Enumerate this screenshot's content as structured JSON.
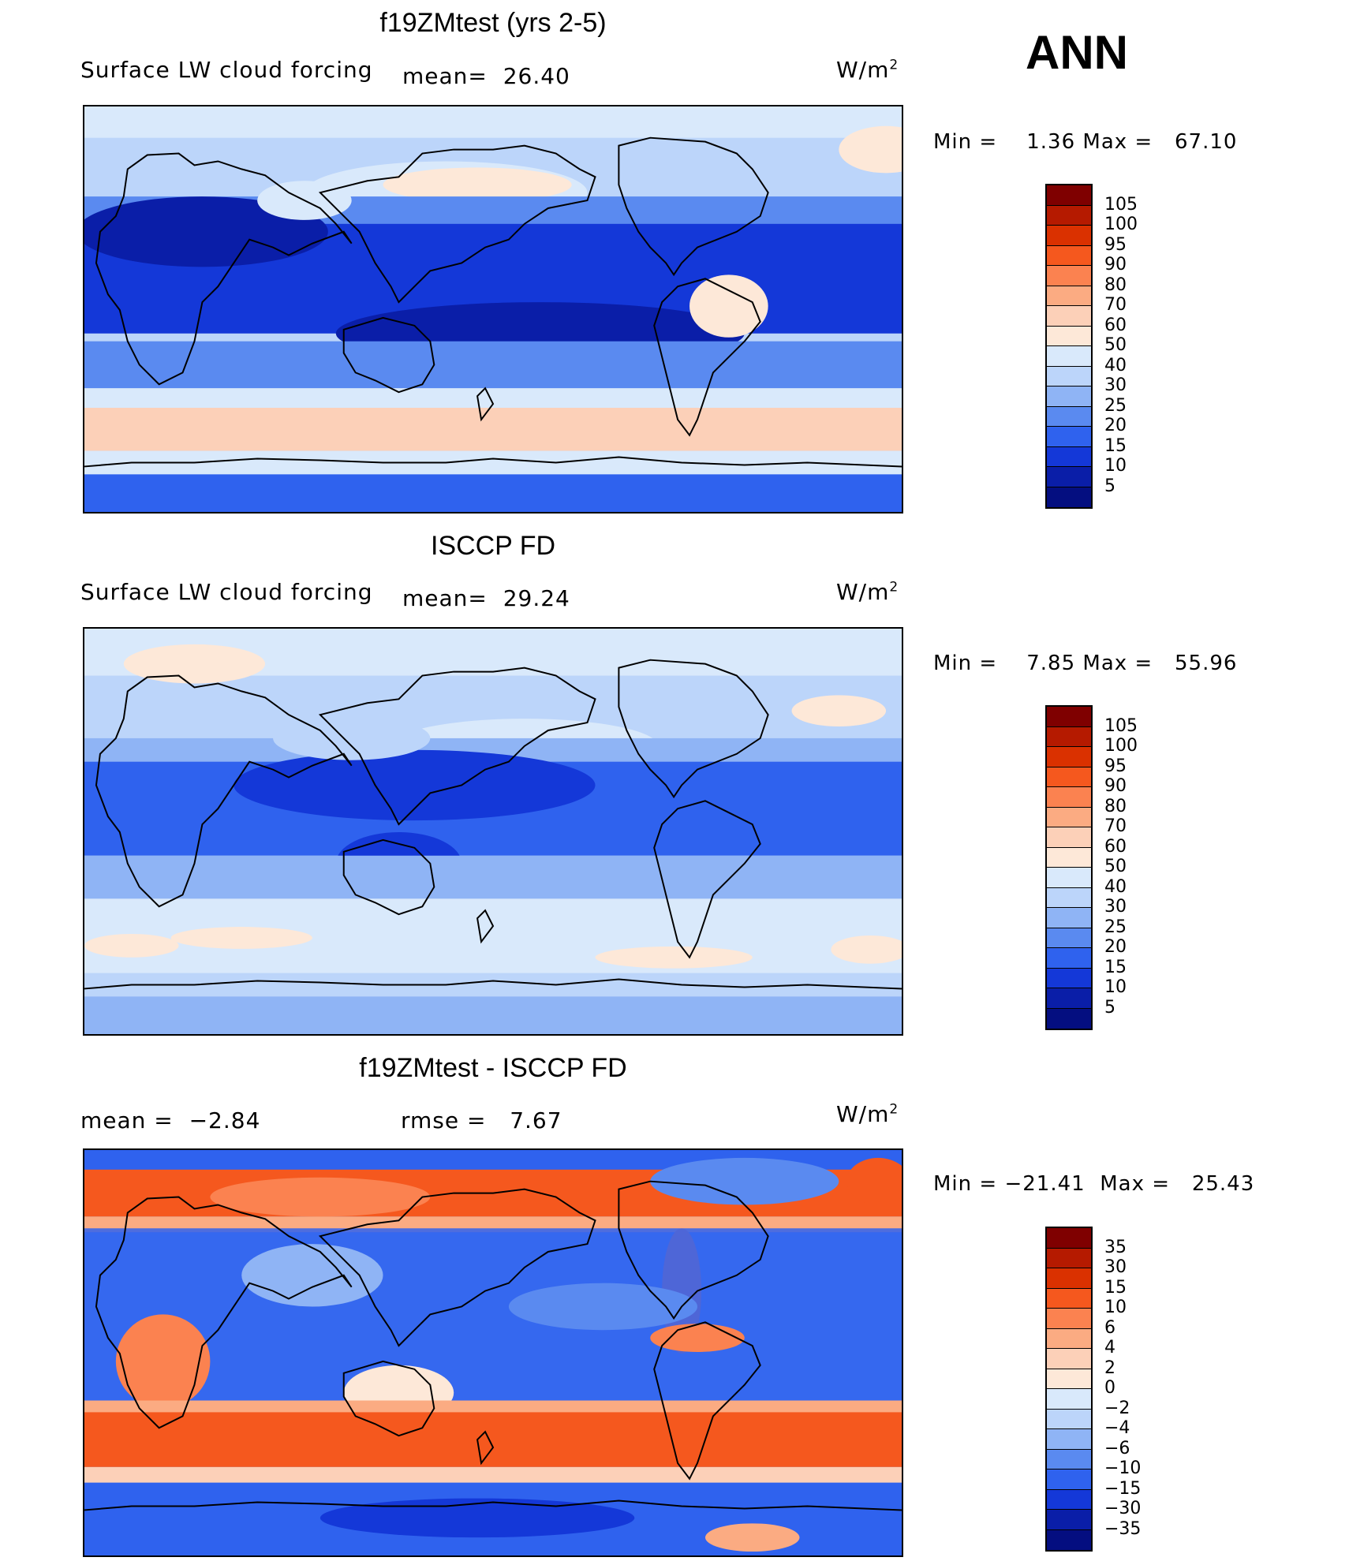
{
  "season": "ANN",
  "panels": [
    {
      "title": "f19ZMtest (yrs 2-5)",
      "variable": "Surface LW cloud forcing",
      "stat_label": "mean=",
      "stat_value": "26.40",
      "units": "W/m",
      "units_sup": "2",
      "min_label": "Min =",
      "min_value": "1.36",
      "max_label": "Max =",
      "max_value": "67.10",
      "levels": [
        "105",
        "100",
        "95",
        "90",
        "80",
        "70",
        "60",
        "50",
        "40",
        "30",
        "25",
        "20",
        "15",
        "10",
        "5"
      ]
    },
    {
      "title": "ISCCP FD",
      "variable": "Surface LW cloud forcing",
      "stat_label": "mean=",
      "stat_value": "29.24",
      "units": "W/m",
      "units_sup": "2",
      "min_label": "Min =",
      "min_value": "7.85",
      "max_label": "Max =",
      "max_value": "55.96",
      "levels": [
        "105",
        "100",
        "95",
        "90",
        "80",
        "70",
        "60",
        "50",
        "40",
        "30",
        "25",
        "20",
        "15",
        "10",
        "5"
      ]
    },
    {
      "title": "f19ZMtest - ISCCP FD",
      "mean_label": "mean =",
      "mean_value": "−2.84",
      "rmse_label": "rmse =",
      "rmse_value": "7.67",
      "units": "W/m",
      "units_sup": "2",
      "min_label": "Min =",
      "min_value": "−21.41",
      "max_label": "Max =",
      "max_value": "25.43",
      "levels": [
        "35",
        "30",
        "15",
        "10",
        "6",
        "4",
        "2",
        "0",
        "−2",
        "−4",
        "−6",
        "−10",
        "−15",
        "−30",
        "−35"
      ]
    }
  ],
  "colors": {
    "abs_scale": [
      "#7f0000",
      "#b51a00",
      "#da3100",
      "#f5581e",
      "#fb8250",
      "#fbab82",
      "#fcd0b8",
      "#fde8d8",
      "#d9e9fb",
      "#bcd5fa",
      "#8fb4f5",
      "#5a8af0",
      "#2f62ee",
      "#1438d8",
      "#0a1ea8",
      "#040e80"
    ],
    "diff_scale": [
      "#7f0000",
      "#b51a00",
      "#da3100",
      "#f5581e",
      "#fb8250",
      "#fbab82",
      "#fcd0b8",
      "#fde8d8",
      "#d9e9fb",
      "#bcd5fa",
      "#8fb4f5",
      "#5a8af0",
      "#2f62ee",
      "#1438d8",
      "#0a1ea8",
      "#040e80"
    ]
  },
  "chart_data": [
    {
      "type": "heatmap",
      "title": "f19ZMtest (yrs 2-5)",
      "subtitle": "Surface LW cloud forcing",
      "units": "W/m2",
      "mean": 26.4,
      "min": 1.36,
      "max": 67.1,
      "contour_levels": [
        5,
        10,
        15,
        20,
        25,
        30,
        40,
        50,
        60,
        70,
        80,
        90,
        95,
        100,
        105
      ]
    },
    {
      "type": "heatmap",
      "title": "ISCCP FD",
      "subtitle": "Surface LW cloud forcing",
      "units": "W/m2",
      "mean": 29.24,
      "min": 7.85,
      "max": 55.96,
      "contour_levels": [
        5,
        10,
        15,
        20,
        25,
        30,
        40,
        50,
        60,
        70,
        80,
        90,
        95,
        100,
        105
      ]
    },
    {
      "type": "heatmap",
      "title": "f19ZMtest - ISCCP FD",
      "units": "W/m2",
      "mean": -2.84,
      "rmse": 7.67,
      "min": -21.41,
      "max": 25.43,
      "contour_levels": [
        -35,
        -30,
        -15,
        -10,
        -6,
        -4,
        -2,
        0,
        2,
        4,
        6,
        10,
        15,
        30,
        35
      ]
    }
  ]
}
